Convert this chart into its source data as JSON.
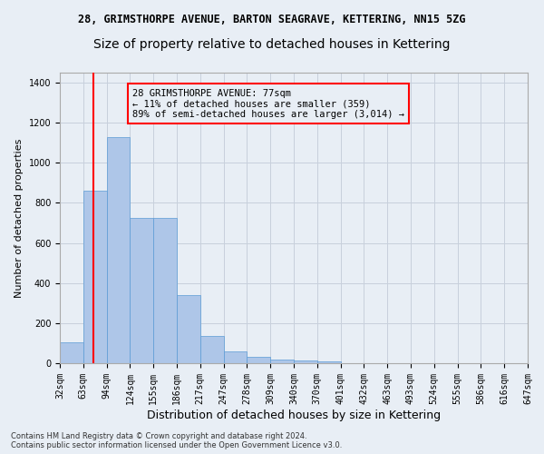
{
  "title_line1": "28, GRIMSTHORPE AVENUE, BARTON SEAGRAVE, KETTERING, NN15 5ZG",
  "title_line2": "Size of property relative to detached houses in Kettering",
  "xlabel": "Distribution of detached houses by size in Kettering",
  "ylabel": "Number of detached properties",
  "bar_values": [
    105,
    860,
    1130,
    725,
    725,
    340,
    135,
    60,
    30,
    20,
    15,
    10,
    0,
    0,
    0,
    0,
    0,
    0,
    0,
    0
  ],
  "categories": [
    "32sqm",
    "63sqm",
    "94sqm",
    "124sqm",
    "155sqm",
    "186sqm",
    "217sqm",
    "247sqm",
    "278sqm",
    "309sqm",
    "340sqm",
    "370sqm",
    "401sqm",
    "432sqm",
    "463sqm",
    "493sqm",
    "524sqm",
    "555sqm",
    "586sqm",
    "616sqm",
    "647sqm"
  ],
  "bar_color": "#aec6e8",
  "bar_edge_color": "#5b9bd5",
  "vline_color": "red",
  "annotation_box_text": "28 GRIMSTHORPE AVENUE: 77sqm\n← 11% of detached houses are smaller (359)\n89% of semi-detached houses are larger (3,014) →",
  "ylim": [
    0,
    1450
  ],
  "yticks": [
    0,
    200,
    400,
    600,
    800,
    1000,
    1200,
    1400
  ],
  "grid_color": "#c8d0dc",
  "bg_color": "#e8eef5",
  "footer_text": "Contains HM Land Registry data © Crown copyright and database right 2024.\nContains public sector information licensed under the Open Government Licence v3.0.",
  "title1_fontsize": 8.5,
  "title2_fontsize": 10,
  "ylabel_fontsize": 8,
  "xlabel_fontsize": 9,
  "tick_fontsize": 7,
  "annot_fontsize": 7.5,
  "footer_fontsize": 6
}
